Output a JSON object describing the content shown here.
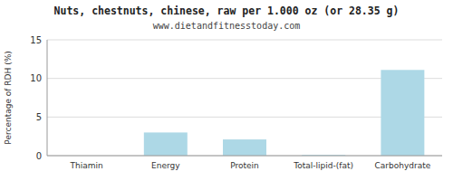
{
  "chart_data": {
    "type": "bar",
    "title": "Nuts, chestnuts, chinese, raw per 1.000 oz (or 28.35 g)",
    "subtitle": "www.dietandfitnesstoday.com",
    "categories": [
      "Thiamin",
      "Energy",
      "Protein",
      "Total-lipid-(fat)",
      "Carbohydrate"
    ],
    "values": [
      0,
      3.0,
      2.1,
      0.1,
      11.1
    ],
    "color": "#add8e6",
    "ylabel": "Percentage of RDH (%)",
    "ylim": [
      0,
      15
    ],
    "yticks": [
      0,
      5,
      10,
      15
    ],
    "grid": true
  }
}
